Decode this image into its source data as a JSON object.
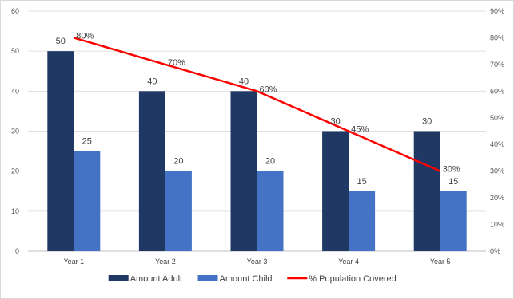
{
  "chart_data": {
    "type": "bar",
    "categories": [
      "Year 1",
      "Year 2",
      "Year 3",
      "Year 4",
      "Year 5"
    ],
    "series": [
      {
        "name": "Amount Adult",
        "type": "bar",
        "axis": "left",
        "color": "#1f3864",
        "values": [
          50,
          40,
          40,
          30,
          30
        ],
        "data_labels": [
          "50",
          "40",
          "40",
          "30",
          "30"
        ]
      },
      {
        "name": "Amount Child",
        "type": "bar",
        "axis": "left",
        "color": "#4472c4",
        "values": [
          25,
          20,
          20,
          15,
          15
        ],
        "data_labels": [
          "25",
          "20",
          "20",
          "15",
          "15"
        ]
      },
      {
        "name": "% Population Covered",
        "type": "line",
        "axis": "right",
        "color": "#ff0000",
        "values": [
          80,
          70,
          60,
          45,
          30
        ],
        "data_labels": [
          "80%",
          "70%",
          "60%",
          "45%",
          "30%"
        ]
      }
    ],
    "y_left": {
      "min": 0,
      "max": 60,
      "ticks": [
        "0",
        "10",
        "20",
        "30",
        "40",
        "50",
        "60"
      ]
    },
    "y_right": {
      "min": 0,
      "max": 90,
      "ticks": [
        "0%",
        "10%",
        "20%",
        "30%",
        "40%",
        "50%",
        "60%",
        "70%",
        "80%",
        "90%"
      ]
    },
    "grid": true,
    "legend_position": "bottom"
  }
}
